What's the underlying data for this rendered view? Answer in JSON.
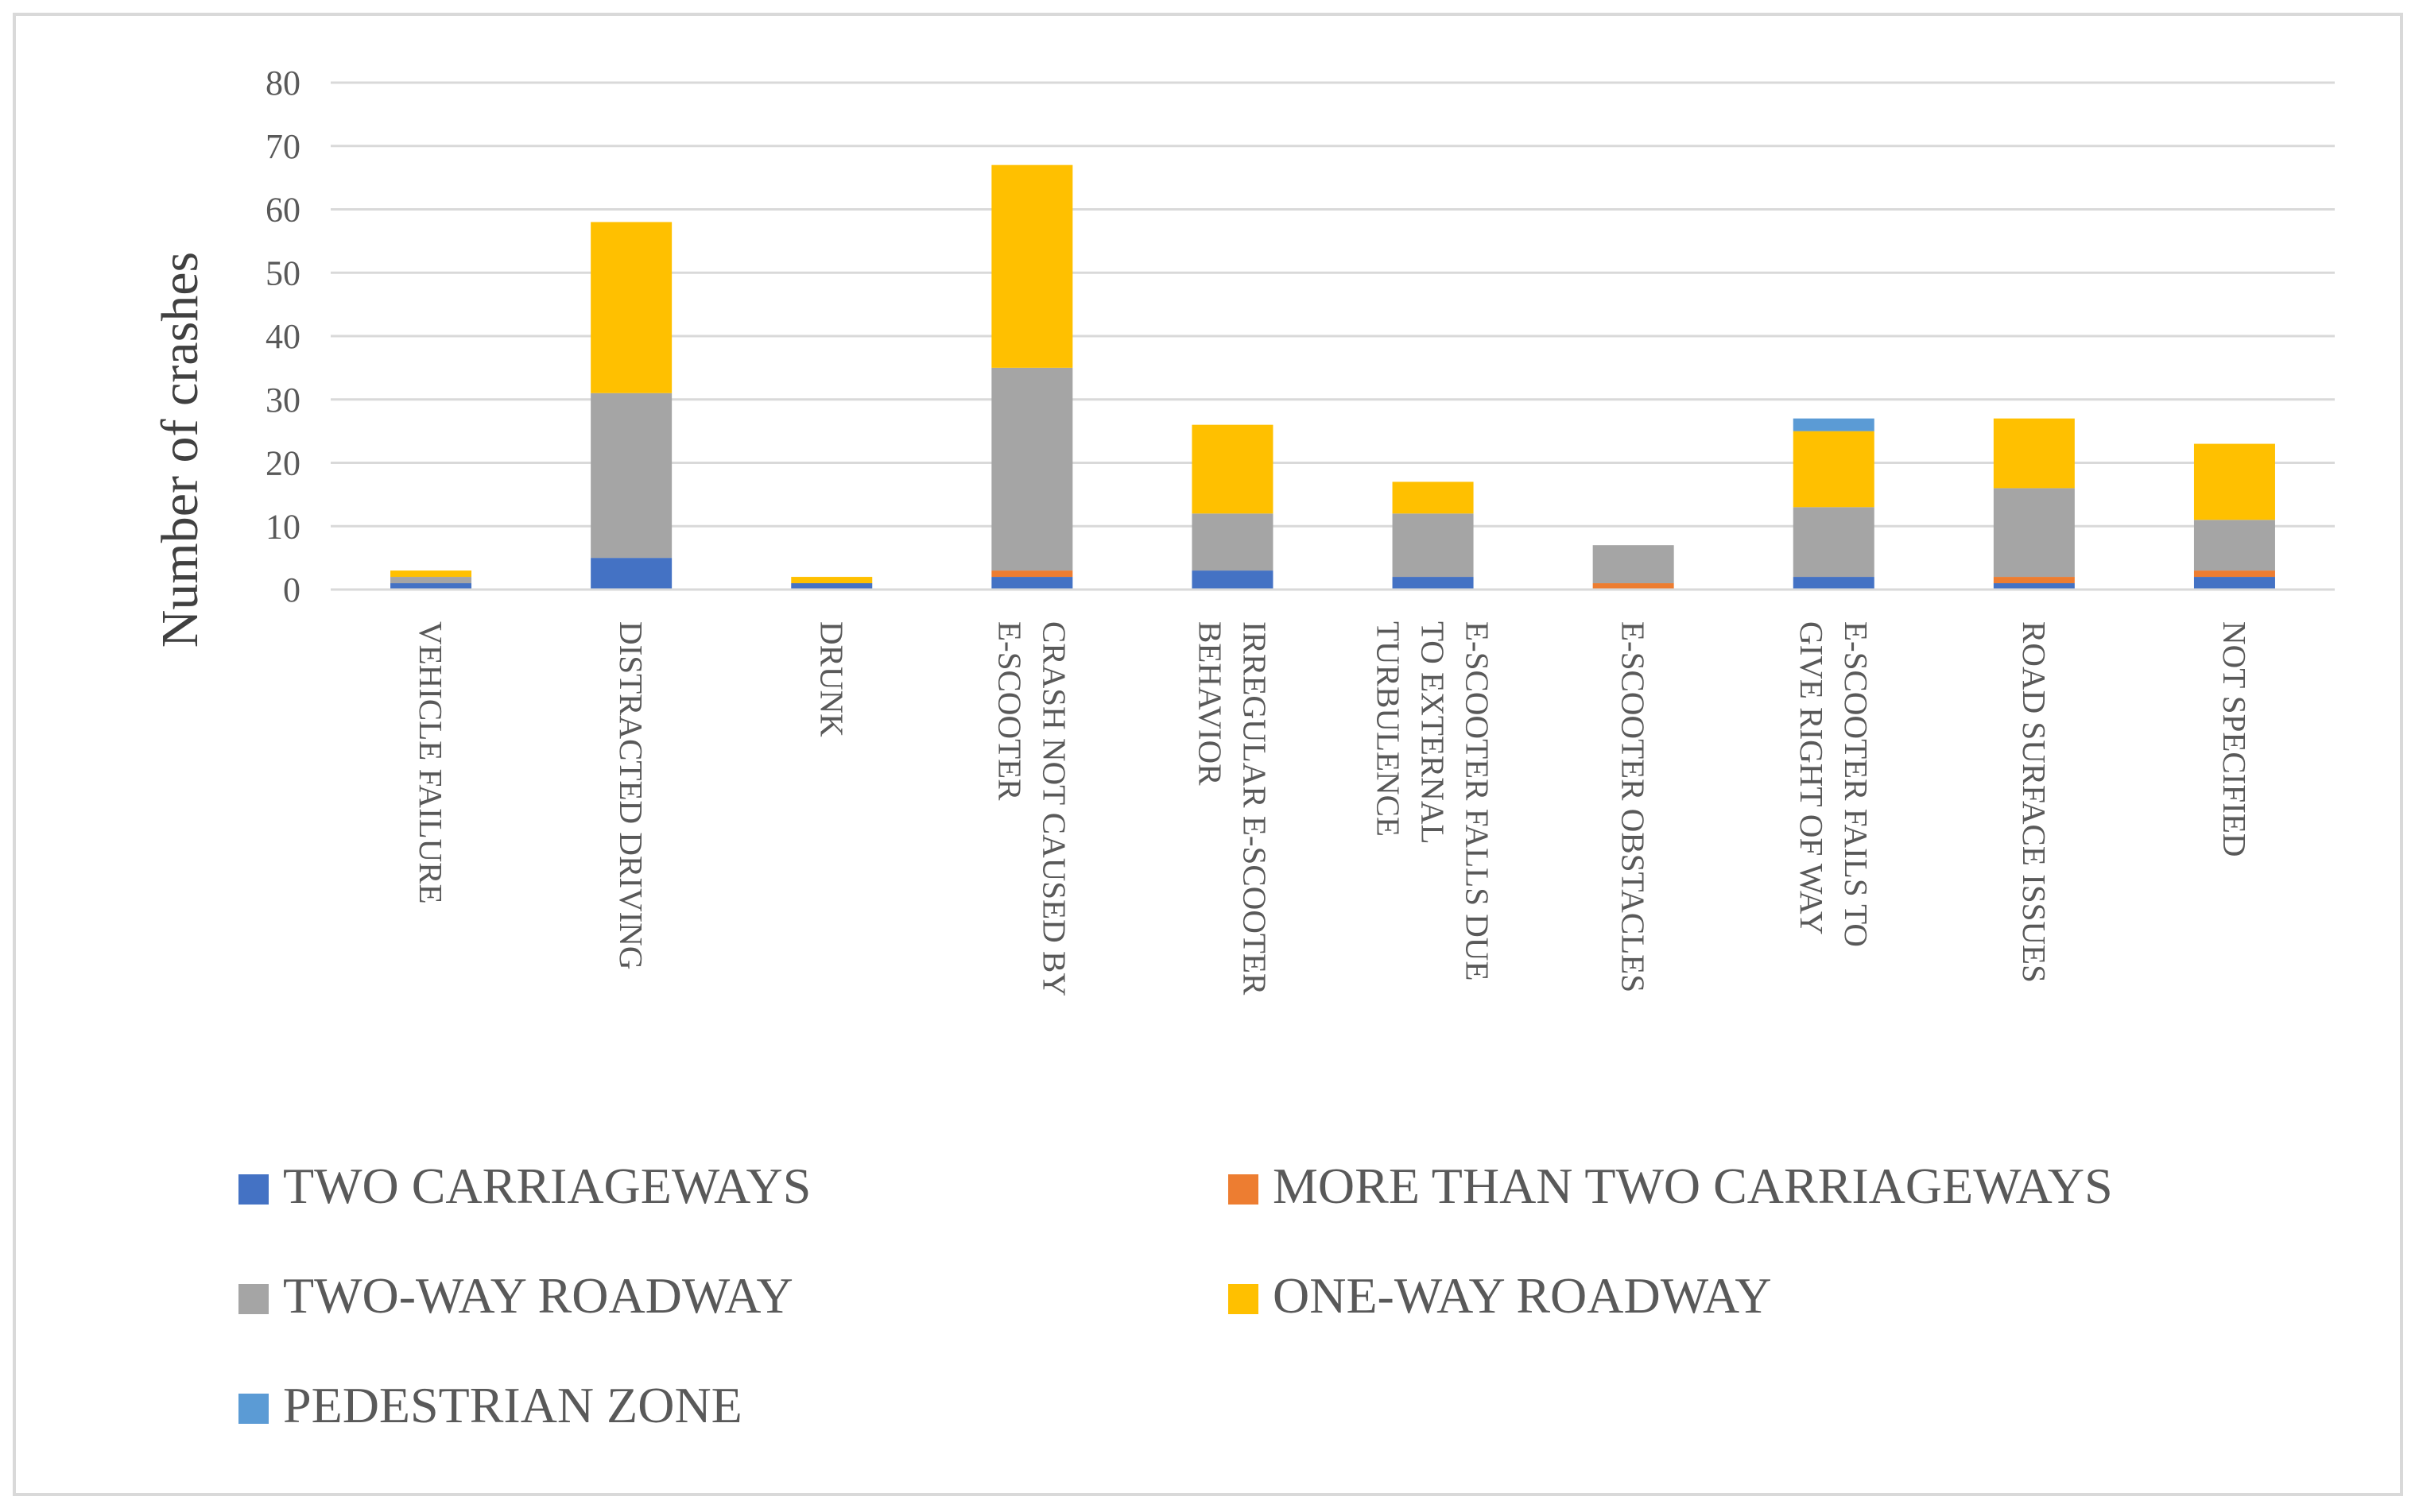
{
  "chart_data": {
    "type": "bar",
    "stacked": true,
    "title": "",
    "xlabel": "",
    "ylabel": "Number of crashes",
    "ylim": [
      0,
      80
    ],
    "yticks": [
      0,
      10,
      20,
      30,
      40,
      50,
      60,
      70,
      80
    ],
    "grid": true,
    "legend_position": "bottom",
    "categories": [
      [
        "VEHICLE FAILURE"
      ],
      [
        "DISTRACTED DRIVING"
      ],
      [
        "DRUNK"
      ],
      [
        "CRASH NOT CAUSED BY",
        "E-SCOOTER"
      ],
      [
        "IRREGULAR E-SCOOTER",
        "BEHAVIOR"
      ],
      [
        "E-SCOOTER FALLS DUE",
        "TO EXTERNAL",
        "TURBULENCE"
      ],
      [
        "E-SCOOTER OBSTACLES"
      ],
      [
        "E-SCOOTER FAILS TO",
        "GIVE RIGHT OF WAY"
      ],
      [
        "ROAD SURFACE ISSUES"
      ],
      [
        "NOT SPECIFIED"
      ]
    ],
    "series": [
      {
        "name": "TWO CARRIAGEWAYS",
        "color": "#4472c4",
        "values": [
          1,
          5,
          1,
          2,
          3,
          2,
          0,
          2,
          1,
          2
        ]
      },
      {
        "name": "MORE THAN TWO CARRIAGEWAYS",
        "color": "#ed7d31",
        "values": [
          0,
          0,
          0,
          1,
          0,
          0,
          1,
          0,
          1,
          1
        ]
      },
      {
        "name": "TWO-WAY ROADWAY",
        "color": "#a5a5a5",
        "values": [
          1,
          26,
          0,
          32,
          9,
          10,
          6,
          11,
          14,
          8
        ]
      },
      {
        "name": "ONE-WAY ROADWAY",
        "color": "#ffc000",
        "values": [
          1,
          27,
          1,
          32,
          14,
          5,
          0,
          12,
          11,
          12
        ]
      },
      {
        "name": "PEDESTRIAN ZONE",
        "color": "#5b9bd5",
        "values": [
          0,
          0,
          0,
          0,
          0,
          0,
          0,
          2,
          0,
          0
        ]
      }
    ]
  }
}
